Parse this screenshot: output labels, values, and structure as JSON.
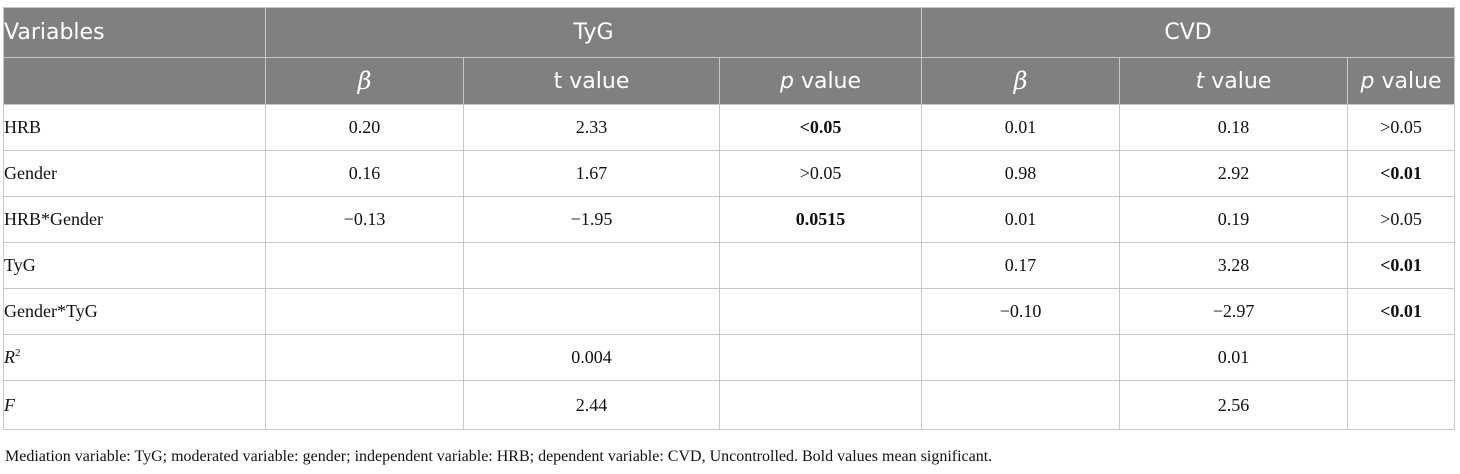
{
  "header": {
    "variables_label": "Variables",
    "group1": "TyG",
    "group2": "CVD",
    "beta": "β",
    "t_value": "t value",
    "p_italic": "p",
    "value_word": " value"
  },
  "rows": [
    {
      "label": "HRB",
      "tyg_beta": "0.20",
      "tyg_t": "2.33",
      "tyg_p": "<0.05",
      "cvd_beta": "0.01",
      "cvd_t": "0.18",
      "cvd_p": ">0.05"
    },
    {
      "label": "Gender",
      "tyg_beta": "0.16",
      "tyg_t": "1.67",
      "tyg_p": ">0.05",
      "cvd_beta": "0.98",
      "cvd_t": "2.92",
      "cvd_p": "<0.01"
    },
    {
      "label": "HRB*Gender",
      "tyg_beta": "−0.13",
      "tyg_t": "−1.95",
      "tyg_p": "0.0515",
      "cvd_beta": "0.01",
      "cvd_t": "0.19",
      "cvd_p": ">0.05"
    },
    {
      "label": "TyG",
      "tyg_beta": "",
      "tyg_t": "",
      "tyg_p": "",
      "cvd_beta": "0.17",
      "cvd_t": "3.28",
      "cvd_p": "<0.01"
    },
    {
      "label": "Gender*TyG",
      "tyg_beta": "",
      "tyg_t": "",
      "tyg_p": "",
      "cvd_beta": "−0.10",
      "cvd_t": "−2.97",
      "cvd_p": "<0.01"
    }
  ],
  "r2": {
    "label": "R",
    "sup": "2",
    "tyg": "0.004",
    "cvd": "0.01"
  },
  "f": {
    "label": "F",
    "tyg": "2.44",
    "cvd": "2.56"
  },
  "note": "Mediation variable: TyG; moderated variable: gender; independent variable: HRB; dependent variable: CVD, Uncontrolled. Bold values mean significant."
}
